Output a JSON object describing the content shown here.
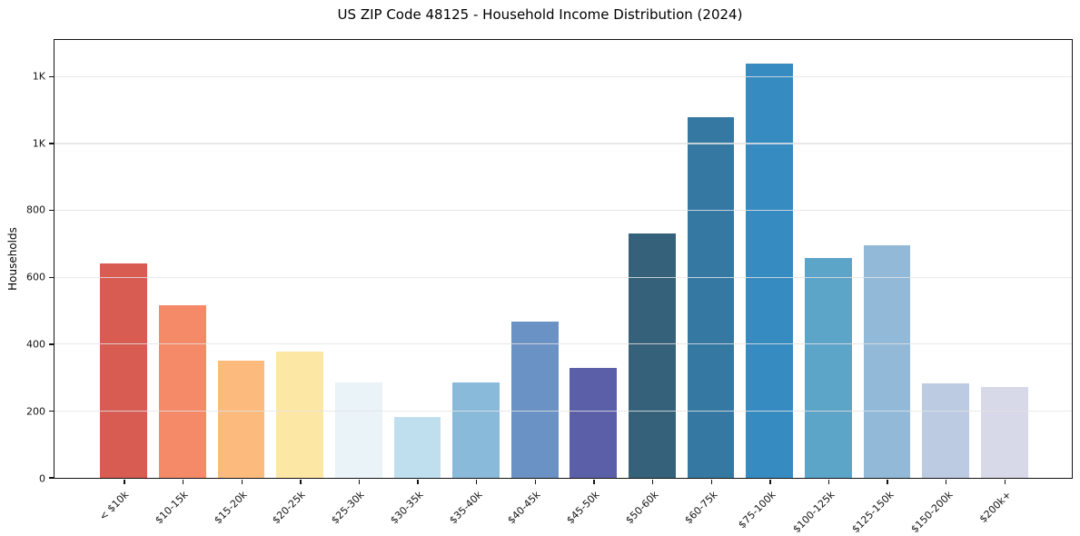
{
  "title": "US ZIP Code 48125 - Household Income Distribution (2024)",
  "chart_data": {
    "type": "bar",
    "title": "US ZIP Code 48125 - Household Income Distribution (2024)",
    "xlabel": "",
    "ylabel": "Households",
    "categories": [
      "< $10k",
      "$10-15k",
      "$15-20k",
      "$20-25k",
      "$25-30k",
      "$30-35k",
      "$35-40k",
      "$40-45k",
      "$45-50k",
      "$50-60k",
      "$60-75k",
      "$75-100k",
      "$100-125k",
      "$125-150k",
      "$150-200k",
      "$200k+"
    ],
    "values": [
      642,
      516,
      351,
      378,
      285,
      182,
      285,
      467,
      328,
      732,
      1078,
      1240,
      658,
      695,
      284,
      272
    ],
    "bar_colors": [
      "#d85c52",
      "#f58a68",
      "#fcba7c",
      "#fde7a4",
      "#e9f3f8",
      "#bfdfef",
      "#8abada",
      "#6b92c4",
      "#5a5fa8",
      "#35627a",
      "#3579a3",
      "#368bc1",
      "#5da4c9",
      "#93b9d8",
      "#bccbe2",
      "#d7d8e8"
    ],
    "ylim": [
      0,
      1310
    ],
    "yticks": {
      "values": [
        0,
        200,
        400,
        600,
        800,
        1000,
        1200
      ],
      "labels": [
        "0",
        "200",
        "400",
        "600",
        "800",
        "1K",
        "1K"
      ]
    },
    "grid": "horizontal-only",
    "legend": "none",
    "background_color": "#ffffff",
    "spine_color": "#141414",
    "gridline_color": "#e3e3e3"
  }
}
